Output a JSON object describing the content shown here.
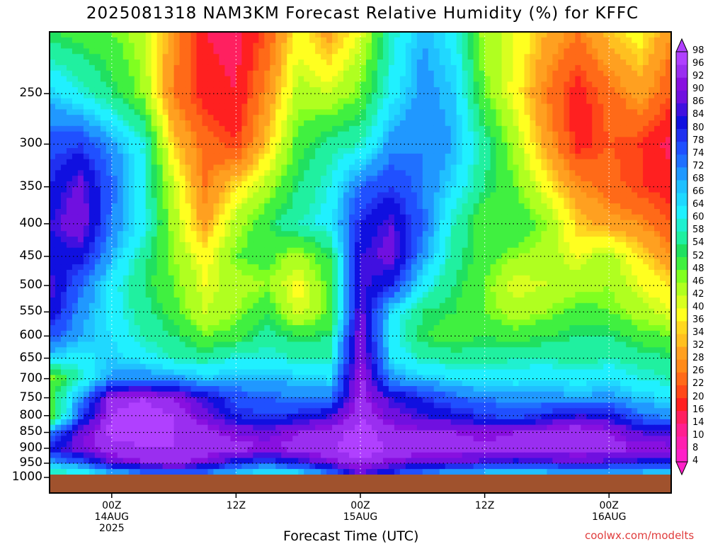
{
  "title": "2025081318 NAM3KM Forecast Relative Humidity (%) for KFFC",
  "watermark": "coolwx.com/modelts",
  "chart_data": {
    "type": "heatmap",
    "title": "2025081318 NAM3KM Forecast Relative Humidity (%) for KFFC",
    "xlabel": "Forecast Time (UTC)",
    "ylabel": "",
    "y_axis": {
      "labels": [
        "250",
        "300",
        "350",
        "400",
        "450",
        "500",
        "550",
        "600",
        "650",
        "700",
        "750",
        "800",
        "850",
        "900",
        "950",
        "1000"
      ],
      "values": [
        250,
        300,
        350,
        400,
        450,
        500,
        550,
        600,
        650,
        700,
        750,
        800,
        850,
        900,
        950,
        1000
      ],
      "scale": "log-pressure",
      "range": [
        200,
        1000
      ]
    },
    "x_axis": {
      "ticks": [
        {
          "label": "00Z",
          "sublabel": "14AUG",
          "year": "2025",
          "hour": 6
        },
        {
          "label": "12Z",
          "sublabel": "",
          "year": "",
          "hour": 18
        },
        {
          "label": "00Z",
          "sublabel": "15AUG",
          "year": "",
          "hour": 30
        },
        {
          "label": "12Z",
          "sublabel": "",
          "year": "",
          "hour": 42
        },
        {
          "label": "00Z",
          "sublabel": "16AUG",
          "year": "",
          "hour": 54
        }
      ],
      "range_hours": [
        0,
        60
      ]
    },
    "colorbar": {
      "levels": [
        4,
        8,
        10,
        14,
        16,
        20,
        22,
        26,
        28,
        32,
        34,
        36,
        40,
        42,
        46,
        48,
        52,
        54,
        58,
        60,
        64,
        66,
        68,
        72,
        74,
        78,
        80,
        84,
        86,
        90,
        92,
        96,
        98
      ],
      "colors": [
        "#ff20c8",
        "#ff20b0",
        "#ff2090",
        "#ff2060",
        "#ff2020",
        "#ff4818",
        "#ff6a18",
        "#ff8a18",
        "#ffa020",
        "#ffc020",
        "#ffd820",
        "#ffff20",
        "#d8ff20",
        "#b0ff20",
        "#80ff20",
        "#40f040",
        "#20e060",
        "#20f0a0",
        "#20f0d0",
        "#20f0ff",
        "#20d8ff",
        "#20c0ff",
        "#2098ff",
        "#2070ff",
        "#2050ff",
        "#2030f0",
        "#1010e0",
        "#4010e0",
        "#7010e0",
        "#8810e0",
        "#9a2ef0",
        "#b040ff"
      ]
    },
    "grid": true,
    "grid_style": "dotted",
    "ground_band": "1000 hPa and below",
    "grid_rh": {
      "hours": [
        0,
        3,
        6,
        9,
        12,
        15,
        18,
        21,
        24,
        27,
        30,
        33,
        36,
        39,
        42,
        45,
        48,
        51,
        54,
        57,
        60
      ],
      "pressures": [
        200,
        250,
        300,
        350,
        400,
        450,
        500,
        550,
        600,
        650,
        700,
        750,
        800,
        850,
        900,
        950,
        975
      ],
      "rows": [
        [
          52,
          50,
          48,
          44,
          28,
          16,
          14,
          22,
          38,
          30,
          40,
          58,
          68,
          62,
          44,
          40,
          32,
          26,
          34,
          38,
          28
        ],
        [
          66,
          60,
          54,
          46,
          26,
          18,
          16,
          28,
          44,
          42,
          48,
          62,
          70,
          66,
          48,
          38,
          26,
          18,
          24,
          30,
          22
        ],
        [
          76,
          78,
          70,
          60,
          34,
          24,
          20,
          34,
          50,
          56,
          58,
          70,
          72,
          68,
          56,
          44,
          30,
          18,
          22,
          20,
          14
        ],
        [
          80,
          88,
          74,
          60,
          42,
          26,
          36,
          44,
          54,
          60,
          74,
          78,
          72,
          64,
          54,
          48,
          38,
          28,
          24,
          20,
          18
        ],
        [
          84,
          90,
          72,
          62,
          44,
          30,
          44,
          52,
          58,
          62,
          80,
          86,
          74,
          58,
          48,
          52,
          46,
          34,
          30,
          28,
          22
        ],
        [
          82,
          82,
          68,
          56,
          46,
          38,
          48,
          50,
          44,
          52,
          84,
          88,
          70,
          56,
          50,
          46,
          44,
          40,
          44,
          36,
          28
        ],
        [
          86,
          74,
          62,
          54,
          48,
          40,
          44,
          46,
          38,
          50,
          86,
          80,
          62,
          54,
          48,
          40,
          42,
          44,
          46,
          40,
          36
        ],
        [
          84,
          70,
          62,
          56,
          50,
          42,
          46,
          52,
          40,
          48,
          88,
          64,
          54,
          52,
          48,
          44,
          46,
          50,
          48,
          44,
          40
        ],
        [
          76,
          68,
          64,
          58,
          54,
          48,
          50,
          56,
          52,
          54,
          90,
          62,
          52,
          50,
          52,
          50,
          52,
          54,
          54,
          50,
          48
        ],
        [
          64,
          62,
          66,
          62,
          58,
          56,
          60,
          60,
          58,
          58,
          92,
          64,
          58,
          56,
          56,
          58,
          58,
          56,
          58,
          56,
          54
        ],
        [
          46,
          58,
          70,
          72,
          70,
          66,
          68,
          68,
          66,
          64,
          94,
          70,
          66,
          64,
          62,
          62,
          64,
          62,
          64,
          60,
          58
        ],
        [
          50,
          70,
          94,
          96,
          92,
          84,
          76,
          74,
          72,
          72,
          94,
          84,
          80,
          74,
          72,
          70,
          70,
          68,
          70,
          66,
          64
        ],
        [
          46,
          76,
          96,
          98,
          96,
          88,
          80,
          78,
          80,
          84,
          96,
          88,
          84,
          82,
          78,
          76,
          80,
          84,
          82,
          74,
          70
        ],
        [
          70,
          88,
          98,
          98,
          96,
          94,
          90,
          88,
          92,
          94,
          98,
          94,
          92,
          92,
          90,
          92,
          94,
          96,
          92,
          86,
          84
        ],
        [
          82,
          90,
          94,
          96,
          96,
          94,
          94,
          92,
          94,
          96,
          98,
          96,
          94,
          94,
          94,
          94,
          94,
          94,
          94,
          92,
          92
        ],
        [
          68,
          74,
          88,
          92,
          94,
          90,
          80,
          76,
          82,
          90,
          96,
          90,
          88,
          86,
          84,
          82,
          84,
          86,
          84,
          82,
          80
        ],
        [
          58,
          62,
          70,
          74,
          78,
          74,
          68,
          64,
          66,
          74,
          88,
          80,
          74,
          70,
          68,
          66,
          68,
          70,
          70,
          68,
          66
        ]
      ]
    }
  }
}
